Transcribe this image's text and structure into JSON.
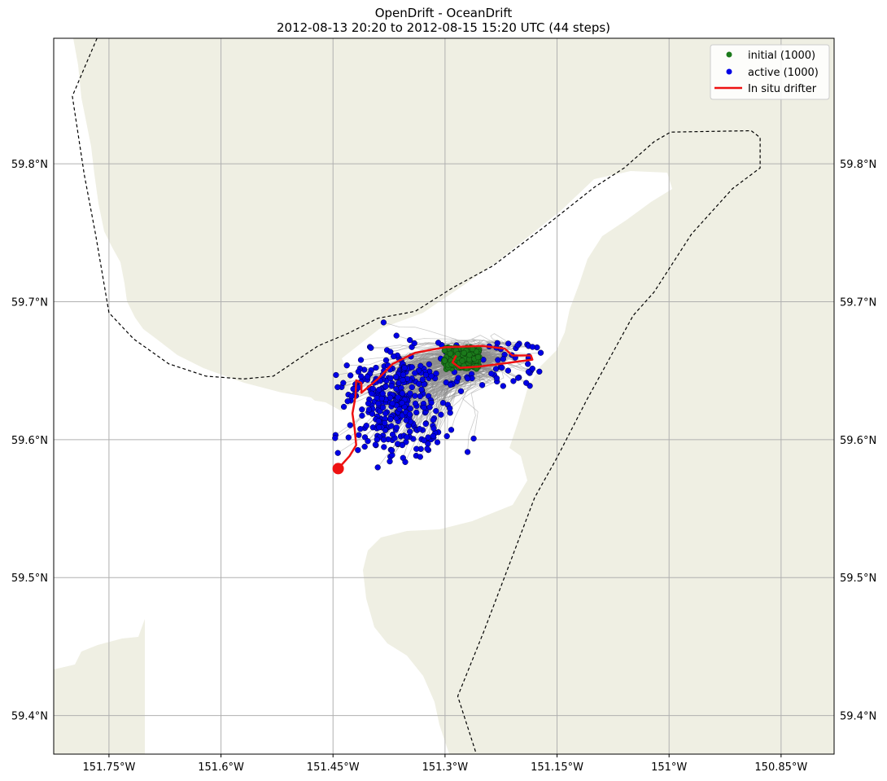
{
  "title": {
    "line1": "OpenDrift - OceanDrift",
    "line2": "2012-08-13 20:20 to 2012-08-15 15:20 UTC (44 steps)"
  },
  "colors": {
    "land": "#efefe3",
    "water": "#ffffff",
    "grid": "#b0b0b0",
    "initial": "#1b7a1b",
    "active": "#0000e6",
    "drifter": "#ee1111",
    "trajectory": "#8c8c8c",
    "boundary": "#000000"
  },
  "chart_data": {
    "type": "scatter",
    "projection": "lon-lat",
    "xlim": [
      -151.824,
      -150.779
    ],
    "ylim": [
      59.372,
      59.891
    ],
    "x_ticks": [
      {
        "value": -151.75,
        "label": "151.75°W"
      },
      {
        "value": -151.6,
        "label": "151.6°W"
      },
      {
        "value": -151.45,
        "label": "151.45°W"
      },
      {
        "value": -151.3,
        "label": "151.3°W"
      },
      {
        "value": -151.15,
        "label": "151.15°W"
      },
      {
        "value": -151.0,
        "label": "151°W"
      },
      {
        "value": -150.85,
        "label": "150.85°W"
      }
    ],
    "y_ticks": [
      {
        "value": 59.4,
        "label": "59.4°N"
      },
      {
        "value": 59.5,
        "label": "59.5°N"
      },
      {
        "value": 59.6,
        "label": "59.6°N"
      },
      {
        "value": 59.7,
        "label": "59.7°N"
      },
      {
        "value": 59.8,
        "label": "59.8°N"
      }
    ],
    "grid": true,
    "legend_position": "top-right",
    "legend": [
      {
        "label": "initial (1000)",
        "kind": "point",
        "color": "#1b7a1b"
      },
      {
        "label": "active (1000)",
        "kind": "point",
        "color": "#0000e6"
      },
      {
        "label": "In situ drifter",
        "kind": "line",
        "color": "#ee1111"
      }
    ],
    "initial_cloud": {
      "center": [
        -151.278,
        59.659
      ],
      "spread": [
        0.024,
        0.008
      ],
      "count_label": "1000"
    },
    "active_cloud": {
      "center": [
        -151.365,
        59.627
      ],
      "spread": [
        0.035,
        0.02
      ],
      "count_label": "1000"
    },
    "drifter_track": [
      [
        -151.443,
        59.579
      ],
      [
        -151.428,
        59.588
      ],
      [
        -151.419,
        59.596
      ],
      [
        -151.421,
        59.608
      ],
      [
        -151.424,
        59.619
      ],
      [
        -151.42,
        59.631
      ],
      [
        -151.419,
        59.643
      ],
      [
        -151.412,
        59.641
      ],
      [
        -151.412,
        59.634
      ],
      [
        -151.39,
        59.644
      ],
      [
        -151.37,
        59.655
      ],
      [
        -151.34,
        59.663
      ],
      [
        -151.3,
        59.667
      ],
      [
        -151.25,
        59.668
      ],
      [
        -151.22,
        59.666
      ],
      [
        -151.21,
        59.661
      ],
      [
        -151.185,
        59.661
      ],
      [
        -151.183,
        59.658
      ],
      [
        -151.225,
        59.655
      ],
      [
        -151.255,
        59.653
      ],
      [
        -151.28,
        59.652
      ],
      [
        -151.29,
        59.656
      ],
      [
        -151.285,
        59.661
      ]
    ],
    "drifter_end_marker": [
      -151.443,
      59.579
    ],
    "boundary_lines": [
      [
        [
          -151.766,
          59.891
        ],
        [
          -151.799,
          59.849
        ],
        [
          -151.783,
          59.792
        ],
        [
          -151.768,
          59.749
        ],
        [
          -151.75,
          59.692
        ],
        [
          -151.717,
          59.673
        ],
        [
          -151.67,
          59.655
        ],
        [
          -151.62,
          59.646
        ],
        [
          -151.57,
          59.644
        ],
        [
          -151.53,
          59.646
        ],
        [
          -151.5,
          59.657
        ],
        [
          -151.47,
          59.668
        ],
        [
          -151.43,
          59.677
        ],
        [
          -151.39,
          59.688
        ],
        [
          -151.34,
          59.693
        ],
        [
          -151.29,
          59.71
        ],
        [
          -151.236,
          59.726
        ],
        [
          -151.17,
          59.753
        ],
        [
          -151.1,
          59.783
        ],
        [
          -151.06,
          59.797
        ],
        [
          -151.02,
          59.816
        ],
        [
          -150.998,
          59.823
        ],
        [
          -150.89,
          59.824
        ],
        [
          -150.878,
          59.819
        ],
        [
          -150.878,
          59.797
        ],
        [
          -150.915,
          59.782
        ],
        [
          -150.97,
          59.749
        ],
        [
          -151.02,
          59.707
        ],
        [
          -151.048,
          59.69
        ],
        [
          -151.11,
          59.629
        ],
        [
          -151.15,
          59.587
        ],
        [
          -151.18,
          59.558
        ],
        [
          -151.215,
          59.508
        ],
        [
          -151.248,
          59.461
        ],
        [
          -151.283,
          59.414
        ],
        [
          -151.258,
          59.372
        ]
      ]
    ]
  }
}
